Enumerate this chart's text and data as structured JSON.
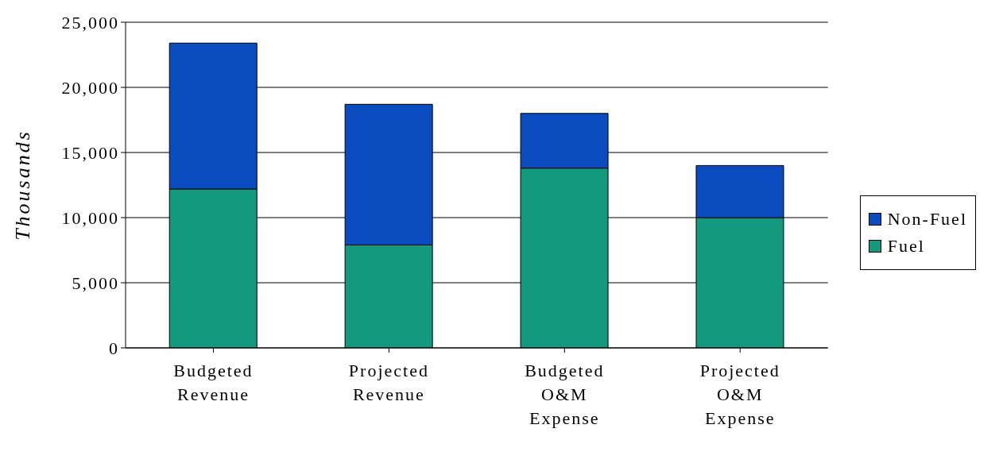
{
  "chart_data": {
    "type": "bar",
    "stacked": true,
    "ylabel": "Thousands",
    "categories": [
      "Budgeted Revenue",
      "Projected Revenue",
      "Budgeted O&M Expense",
      "Projected O&M Expense"
    ],
    "series": [
      {
        "name": "Fuel",
        "color": "#139a7e",
        "values": [
          12200,
          7900,
          13800,
          10000
        ]
      },
      {
        "name": "Non-Fuel",
        "color": "#0a4cc0",
        "values": [
          11200,
          10800,
          4200,
          4000
        ]
      }
    ],
    "ylim": [
      0,
      25000
    ],
    "yticks": [
      {
        "value": 0,
        "label": "0"
      },
      {
        "value": 5000,
        "label": "5,000"
      },
      {
        "value": 10000,
        "label": "10,000"
      },
      {
        "value": 15000,
        "label": "15,000"
      },
      {
        "value": 20000,
        "label": "20,000"
      },
      {
        "value": 25000,
        "label": "25,000"
      }
    ],
    "grid": "y",
    "legend": "right"
  }
}
